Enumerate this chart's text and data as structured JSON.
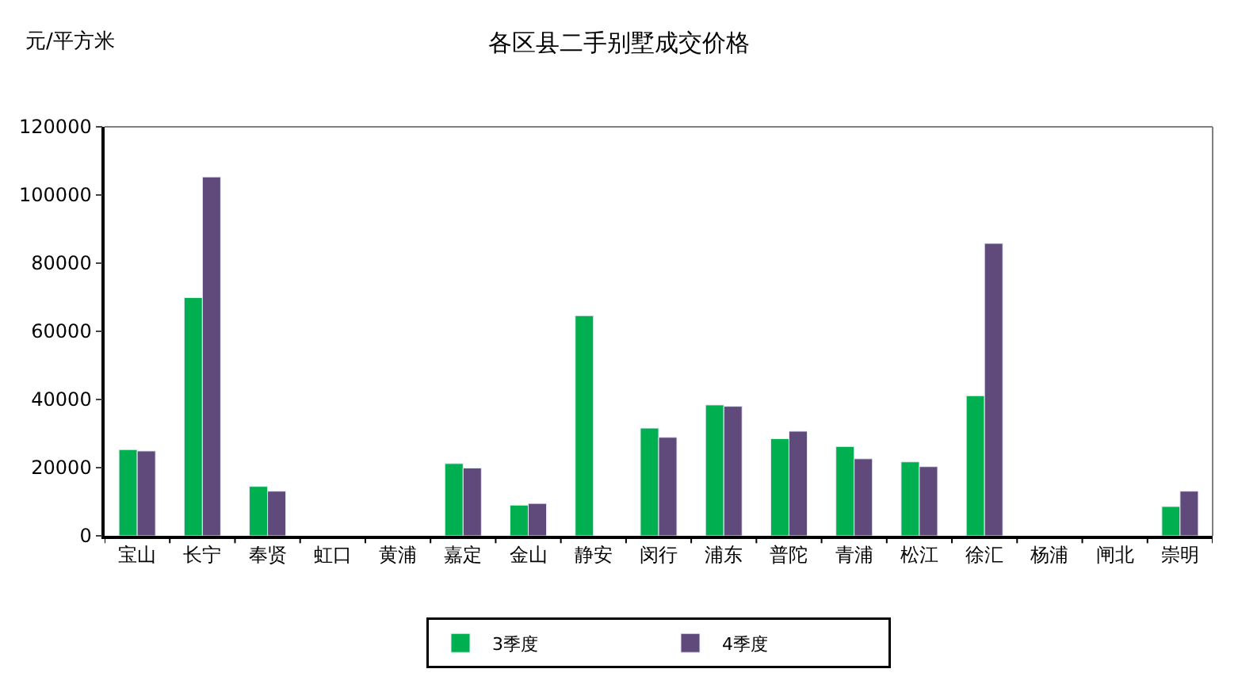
{
  "chart_data": {
    "type": "bar",
    "title": "各区县二手别墅成交价格",
    "ylabel": "元/平方米",
    "categories": [
      "宝山",
      "长宁",
      "奉贤",
      "虹口",
      "黄浦",
      "嘉定",
      "金山",
      "静安",
      "闵行",
      "浦东",
      "普陀",
      "青浦",
      "松江",
      "徐汇",
      "杨浦",
      "闸北",
      "崇明"
    ],
    "series": [
      {
        "name": "3季度",
        "color": "#00b050",
        "values": [
          25300,
          69900,
          14500,
          null,
          null,
          21200,
          9000,
          64600,
          31600,
          38400,
          28500,
          26200,
          21700,
          41100,
          null,
          null,
          8600
        ]
      },
      {
        "name": "4季度",
        "color": "#604a7b",
        "values": [
          24900,
          105300,
          13100,
          null,
          null,
          19900,
          9500,
          null,
          28900,
          38000,
          30700,
          22600,
          20300,
          85800,
          null,
          null,
          13100
        ]
      }
    ],
    "ylim": [
      0,
      120000
    ],
    "yticks": [
      0,
      20000,
      40000,
      60000,
      80000,
      100000,
      120000
    ],
    "legend": "bottom"
  }
}
